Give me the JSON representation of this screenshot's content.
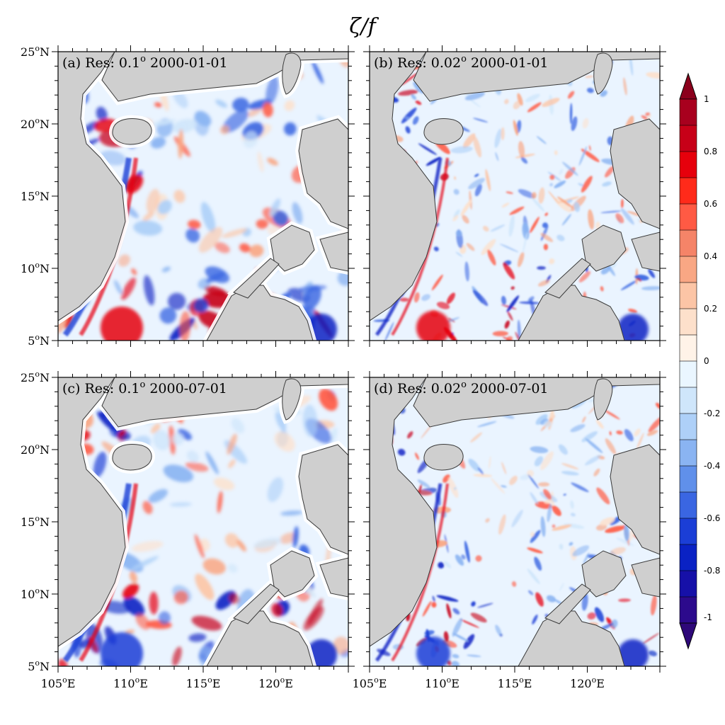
{
  "title": "ζ/f",
  "panels": [
    {
      "id": "a",
      "label_prefix": "(a) Res: 0.1",
      "deg": "o",
      "date": " 2000-01-01",
      "res": "0.1",
      "date_value": "2000-01-01"
    },
    {
      "id": "b",
      "label_prefix": "(b) Res: 0.02",
      "deg": "o",
      "date": " 2000-01-01",
      "res": "0.02",
      "date_value": "2000-01-01"
    },
    {
      "id": "c",
      "label_prefix": "(c) Res: 0.1",
      "deg": "o",
      "date": " 2000-07-01",
      "res": "0.1",
      "date_value": "2000-07-01"
    },
    {
      "id": "d",
      "label_prefix": "(d) Res: 0.02",
      "deg": "o",
      "date": " 2000-07-01",
      "res": "0.02",
      "date_value": "2000-07-01"
    }
  ],
  "axes": {
    "lat_ticks": [
      {
        "num": "25",
        "deg": "o",
        "hem": "N"
      },
      {
        "num": "20",
        "deg": "o",
        "hem": "N"
      },
      {
        "num": "15",
        "deg": "o",
        "hem": "N"
      },
      {
        "num": "10",
        "deg": "o",
        "hem": "N"
      },
      {
        "num": "5",
        "deg": "o",
        "hem": "N"
      }
    ],
    "lon_ticks": [
      {
        "num": "105",
        "deg": "o",
        "hem": "E"
      },
      {
        "num": "110",
        "deg": "o",
        "hem": "E"
      },
      {
        "num": "115",
        "deg": "o",
        "hem": "E"
      },
      {
        "num": "120",
        "deg": "o",
        "hem": "E"
      }
    ],
    "lon_range": [
      105,
      125
    ],
    "lat_range": [
      5,
      25
    ]
  },
  "colorbar": {
    "labels": [
      "1",
      "0.8",
      "0.6",
      "0.4",
      "0.2",
      "0",
      "-0.2",
      "-0.4",
      "-0.6",
      "-0.8",
      "-1"
    ],
    "range": [
      -1,
      1
    ],
    "colors_top_to_bottom": [
      "#a8001e",
      "#c70018",
      "#e6000c",
      "#ff2a1a",
      "#ff5a44",
      "#f58468",
      "#f9a784",
      "#fcc5a6",
      "#fde0cb",
      "#fff3e8",
      "#eaf6ff",
      "#cfe6fb",
      "#aed0f8",
      "#8ab4f2",
      "#6090ea",
      "#3a66e2",
      "#1b3ed6",
      "#0a22c4",
      "#1610a8",
      "#2c0a8c"
    ],
    "over_color": "#8b001c",
    "under_color": "#2e0879"
  },
  "colors": {
    "land": "#cfcfcf",
    "ocean_base": "#eaf4ff",
    "coast": "#3a3a3a"
  }
}
